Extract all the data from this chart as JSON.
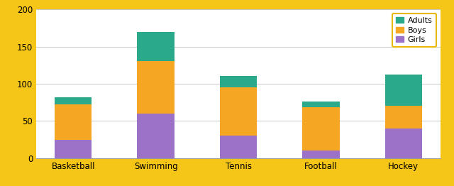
{
  "categories": [
    "Basketball",
    "Swimming",
    "Tennis",
    "Football",
    "Hockey"
  ],
  "girls": [
    25,
    60,
    30,
    10,
    40
  ],
  "boys": [
    47,
    70,
    65,
    58,
    30
  ],
  "adults": [
    10,
    40,
    15,
    8,
    42
  ],
  "colors": {
    "girls": "#9b72c8",
    "boys": "#f5a623",
    "adults": "#2aaa8a"
  },
  "ylim": [
    0,
    200
  ],
  "yticks": [
    0,
    50,
    100,
    150,
    200
  ],
  "background_color": "#f5c518",
  "plot_bg_color": "#ffffff",
  "grid_color": "#c8c8c8",
  "bar_width": 0.45,
  "figsize": [
    6.4,
    2.62
  ],
  "dpi": 100
}
